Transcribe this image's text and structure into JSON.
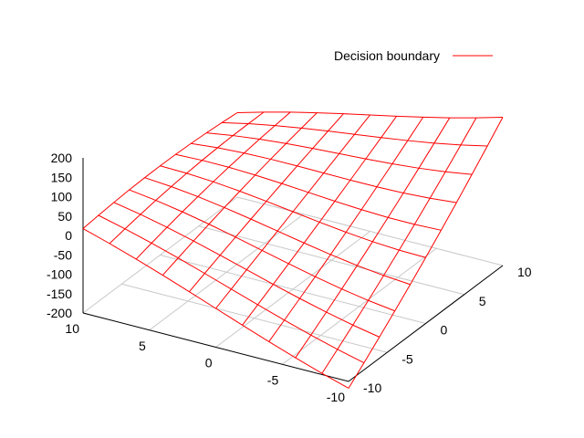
{
  "chart_data": {
    "type": "surface",
    "title": "",
    "xlabel": "",
    "ylabel": "",
    "zlabel": "",
    "xlim": [
      -10,
      10
    ],
    "ylim": [
      -10,
      10
    ],
    "zlim": [
      -200,
      200
    ],
    "x_ticks": [
      "10",
      "5",
      "0",
      "-5",
      "-10"
    ],
    "y_ticks": [
      "-10",
      "-5",
      "0",
      "5",
      "10"
    ],
    "z_ticks": [
      "200",
      "150",
      "100",
      "50",
      "0",
      "-50",
      "-100",
      "-150",
      "-200"
    ],
    "grid": true,
    "legend_position": "top-right",
    "series": [
      {
        "name": "Decision boundary",
        "color": "#ff0000",
        "samples_per_axis": 11,
        "x_values": [
          -10,
          -8,
          -6,
          -4,
          -2,
          0,
          2,
          4,
          6,
          8,
          10
        ],
        "y_values": [
          -10,
          -8,
          -6,
          -4,
          -2,
          0,
          2,
          4,
          6,
          8,
          10
        ],
        "z_corner_values": {
          "x10_y-10": 0,
          "x-10_y-10": -200,
          "x-10_y10": 200,
          "x10_y10": 0
        }
      }
    ]
  }
}
